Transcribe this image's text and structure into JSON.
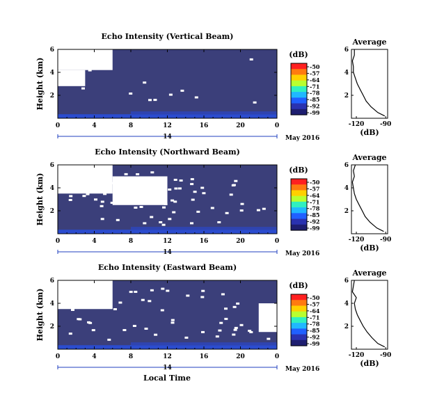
{
  "colors": {
    "background_field": "#3b3f7a",
    "low_layer_blue": "#2b4ccf",
    "gap_white": "#ffffff",
    "date_line": "#1f3fbf"
  },
  "colorbar": {
    "unit_label": "(dB)",
    "ticks": [
      "-50",
      "-57",
      "-64",
      "-71",
      "-78",
      "-85",
      "-92",
      "-99"
    ],
    "colors": [
      "#ff2020",
      "#ff7a10",
      "#ffd000",
      "#b8ff30",
      "#30f0c0",
      "#20b8ff",
      "#2060ff",
      "#2a32b0",
      "#1e1e70"
    ]
  },
  "shared": {
    "x_ticks": [
      "0",
      "4",
      "8",
      "12",
      "16",
      "20",
      "0"
    ],
    "y_ticks": [
      "6",
      "4",
      "2"
    ],
    "y_label": "Height (km)",
    "day_label": "14",
    "date_label": "May 2016",
    "x_label": "Local Time"
  },
  "panels": [
    {
      "title": "Echo Intensity (Vertical Beam)",
      "profile_title": "Average",
      "profile_xticks": [
        "-120",
        "-90"
      ],
      "profile_xlabel": "(dB)"
    },
    {
      "title": "Echo Intensity (Northward Beam)",
      "profile_title": "Average",
      "profile_xticks": [
        "-120",
        "-90"
      ],
      "profile_xlabel": "(dB)"
    },
    {
      "title": "Echo Intensity (Eastward Beam)",
      "profile_title": "Average",
      "profile_xticks": [
        "-120",
        "-90"
      ],
      "profile_xlabel": "(dB)"
    }
  ],
  "chart_data": [
    {
      "type": "heatmap",
      "title": "Echo Intensity (Vertical Beam)",
      "ylabel": "Height (km)",
      "x_range_hours": [
        0,
        24
      ],
      "ylim_km": [
        0,
        6
      ],
      "color_unit": "dB",
      "color_range": [
        -99,
        -50
      ],
      "no_data_regions": [
        {
          "hours": [
            0,
            6
          ],
          "km": [
            4.2,
            6.0
          ]
        },
        {
          "hours": [
            0,
            3
          ],
          "km": [
            2.8,
            4.2
          ]
        }
      ],
      "profile": {
        "title": "Average",
        "xlabel": "(dB)",
        "xlim": [
          -125,
          -88
        ],
        "height_km": [
          0.2,
          0.5,
          1.0,
          1.5,
          2.0,
          2.5,
          3.0,
          3.5,
          4.0,
          4.5,
          5.0,
          5.5,
          6.0
        ],
        "value_db": [
          -91,
          -98,
          -105,
          -110,
          -113,
          -116,
          -119,
          -121,
          -123,
          -123,
          -124,
          -122,
          -122
        ]
      }
    },
    {
      "type": "heatmap",
      "title": "Echo Intensity (Northward Beam)",
      "ylabel": "Height (km)",
      "x_range_hours": [
        0,
        24
      ],
      "ylim_km": [
        0,
        6
      ],
      "color_unit": "dB",
      "color_range": [
        -99,
        -50
      ],
      "no_data_regions": [
        {
          "hours": [
            0,
            6
          ],
          "km": [
            3.5,
            6.0
          ]
        },
        {
          "hours": [
            6,
            12
          ],
          "km": [
            2.5,
            5.0
          ]
        }
      ],
      "profile": {
        "title": "Average",
        "xlabel": "(dB)",
        "xlim": [
          -125,
          -88
        ],
        "height_km": [
          0.2,
          0.5,
          1.0,
          1.5,
          2.0,
          2.5,
          3.0,
          3.5,
          4.0,
          4.5,
          5.0,
          5.5,
          6.0
        ],
        "value_db": [
          -92,
          -99,
          -106,
          -111,
          -114,
          -117,
          -120,
          -122,
          -123,
          -124,
          -122,
          -123,
          -121
        ]
      }
    },
    {
      "type": "heatmap",
      "title": "Echo Intensity (Eastward Beam)",
      "ylabel": "Height (km)",
      "x_range_hours": [
        0,
        24
      ],
      "ylim_km": [
        0,
        6
      ],
      "color_unit": "dB",
      "color_range": [
        -99,
        -50
      ],
      "no_data_regions": [
        {
          "hours": [
            0,
            6
          ],
          "km": [
            3.5,
            6.0
          ]
        },
        {
          "hours": [
            22,
            24
          ],
          "km": [
            1.5,
            4.0
          ]
        }
      ],
      "profile": {
        "title": "Average",
        "xlabel": "(dB)",
        "xlim": [
          -125,
          -88
        ],
        "height_km": [
          0.2,
          0.5,
          1.0,
          1.5,
          2.0,
          2.5,
          3.0,
          3.5,
          4.0,
          4.5,
          5.0,
          5.5,
          6.0
        ],
        "value_db": [
          -91,
          -98,
          -104,
          -109,
          -113,
          -116,
          -119,
          -121,
          -122,
          -120,
          -124,
          -123,
          -122
        ]
      }
    }
  ]
}
